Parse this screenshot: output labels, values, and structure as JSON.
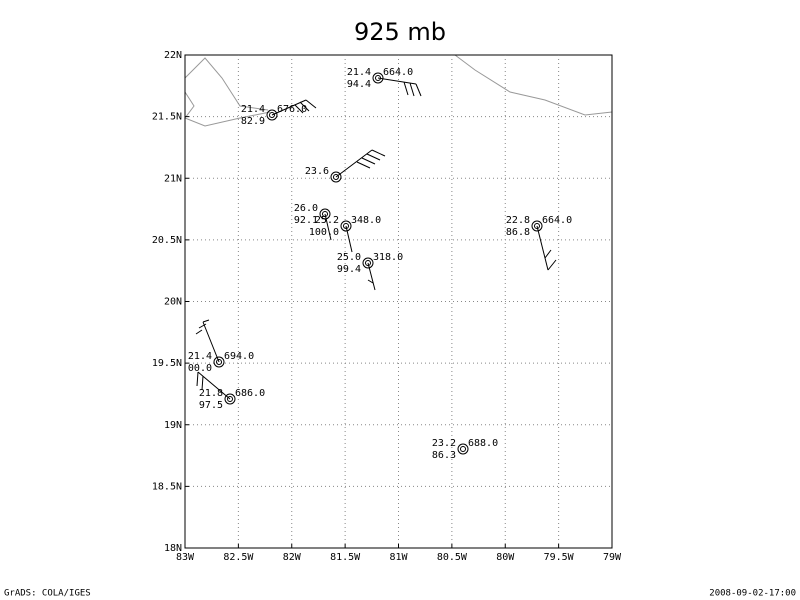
{
  "title": "925 mb",
  "map": {
    "xticks": [
      "83W",
      "82.5W",
      "82W",
      "81.5W",
      "81W",
      "80.5W",
      "80W",
      "79.5W",
      "79W"
    ],
    "yticks": [
      "18N",
      "18.5N",
      "19N",
      "19.5N",
      "20N",
      "20.5N",
      "21N",
      "21.5N",
      "22N"
    ]
  },
  "stations": [
    {
      "temp": "21.4",
      "height": "664.0",
      "rh": "94.4"
    },
    {
      "temp": "21.4",
      "height": "676.0",
      "rh": "82.9"
    },
    {
      "temp": "23.6"
    },
    {
      "temp": "26.0",
      "rh": "92.1"
    },
    {
      "temp": "25.2",
      "height": "348.0",
      "rh": "100.0"
    },
    {
      "temp": "25.0",
      "height": "318.0",
      "rh": "99.4"
    },
    {
      "temp": "22.8",
      "height": "664.0",
      "rh": "86.8"
    },
    {
      "temp": "21.4",
      "height": "694.0",
      "rh": "00.0"
    },
    {
      "temp": "21.8",
      "height": "686.0",
      "rh": "97.5"
    },
    {
      "temp": "23.2",
      "height": "688.0",
      "rh": "86.3"
    }
  ],
  "footer": {
    "left": "GrADS: COLA/IGES",
    "right": "2008-09-02-17:00"
  }
}
